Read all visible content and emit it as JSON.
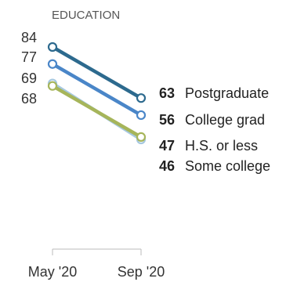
{
  "chart_data": {
    "type": "line",
    "title": "EDUCATION",
    "x": [
      "May '20",
      "Sep '20"
    ],
    "series": [
      {
        "name": "Postgraduate",
        "values": [
          84,
          63
        ],
        "color": "#2d6a8e"
      },
      {
        "name": "College grad",
        "values": [
          77,
          56
        ],
        "color": "#4a86c8"
      },
      {
        "name": "H.S. or less",
        "values": [
          68,
          47
        ],
        "color": "#a6b55a"
      },
      {
        "name": "Some college",
        "values": [
          69,
          46
        ],
        "color": "#a6c8e0"
      }
    ],
    "labels": {
      "start": [
        "84",
        "77",
        "69",
        "68"
      ],
      "end_values": [
        "63",
        "56",
        "47",
        "46"
      ],
      "end_names": [
        "Postgraduate",
        "College grad",
        "H.S. or less",
        "Some college"
      ]
    },
    "grid": false,
    "legend": "direct-labels-right"
  }
}
